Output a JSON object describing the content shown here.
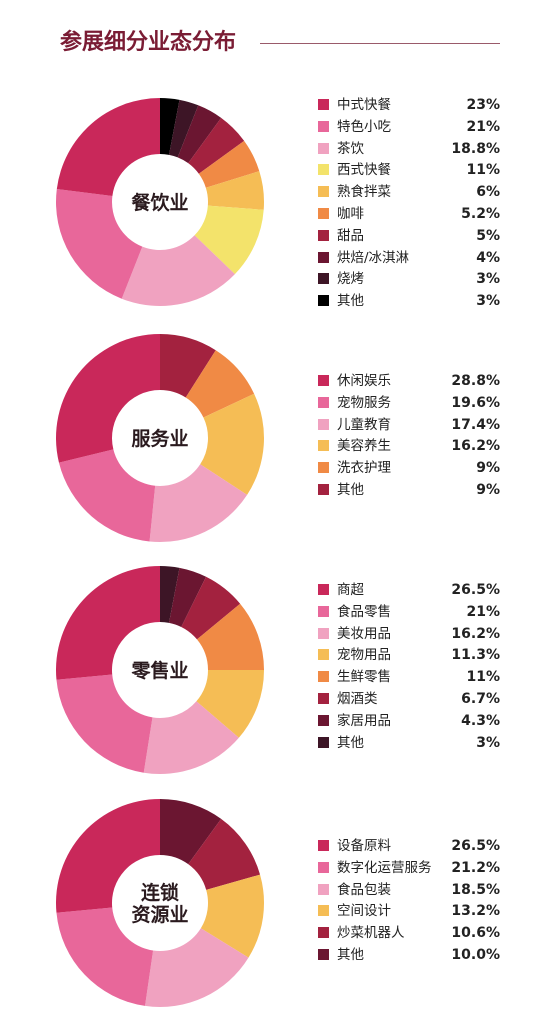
{
  "header": {
    "title": "参展细分业态分布"
  },
  "chart_data": [
    {
      "type": "pie",
      "center_label": [
        "餐饮业"
      ],
      "categories": [
        "中式快餐",
        "特色小吃",
        "茶饮",
        "西式快餐",
        "熟食拌菜",
        "咖啡",
        "甜品",
        "烘焙/冰淇淋",
        "烧烤",
        "其他"
      ],
      "labels": [
        "23%",
        "21%",
        "18.8%",
        "11%",
        "6%",
        "5.2%",
        "5%",
        "4%",
        "3%",
        "3%"
      ],
      "values": [
        23,
        21,
        18.8,
        11,
        6,
        5.2,
        5,
        4,
        3,
        3
      ],
      "colors": [
        "#c9285a",
        "#e8679a",
        "#f0a2c0",
        "#f3e36b",
        "#f5bd55",
        "#f08a45",
        "#a3223f",
        "#6b1631",
        "#3d1526",
        "#000000"
      ]
    },
    {
      "type": "pie",
      "center_label": [
        "服务业"
      ],
      "categories": [
        "休闲娱乐",
        "宠物服务",
        "儿童教育",
        "美容养生",
        "洗衣护理",
        "其他"
      ],
      "labels": [
        "28.8%",
        "19.6%",
        "17.4%",
        "16.2%",
        "9%",
        "9%"
      ],
      "values": [
        28.8,
        19.6,
        17.4,
        16.2,
        9,
        9
      ],
      "colors": [
        "#c9285a",
        "#e8679a",
        "#f0a2c0",
        "#f5bd55",
        "#f08a45",
        "#a3223f"
      ]
    },
    {
      "type": "pie",
      "center_label": [
        "零售业"
      ],
      "categories": [
        "商超",
        "食品零售",
        "美妆用品",
        "宠物用品",
        "生鲜零售",
        "烟酒类",
        "家居用品",
        "其他"
      ],
      "labels": [
        "26.5%",
        "21%",
        "16.2%",
        "11.3%",
        "11%",
        "6.7%",
        "4.3%",
        "3%"
      ],
      "values": [
        26.5,
        21,
        16.2,
        11.3,
        11,
        6.7,
        4.3,
        3
      ],
      "colors": [
        "#c9285a",
        "#e8679a",
        "#f0a2c0",
        "#f5bd55",
        "#f08a45",
        "#a3223f",
        "#6b1631",
        "#3d1526"
      ]
    },
    {
      "type": "pie",
      "center_label": [
        "连锁",
        "资源业"
      ],
      "categories": [
        "设备原料",
        "数字化运营服务",
        "食品包装",
        "空间设计",
        "炒菜机器人",
        "其他"
      ],
      "labels": [
        "26.5%",
        "21.2%",
        "18.5%",
        "13.2%",
        "10.6%",
        "10.0%"
      ],
      "values": [
        26.5,
        21.2,
        18.5,
        13.2,
        10.6,
        10.0
      ],
      "colors": [
        "#c9285a",
        "#e8679a",
        "#f0a2c0",
        "#f5bd55",
        "#a3223f",
        "#6b1631"
      ]
    }
  ]
}
